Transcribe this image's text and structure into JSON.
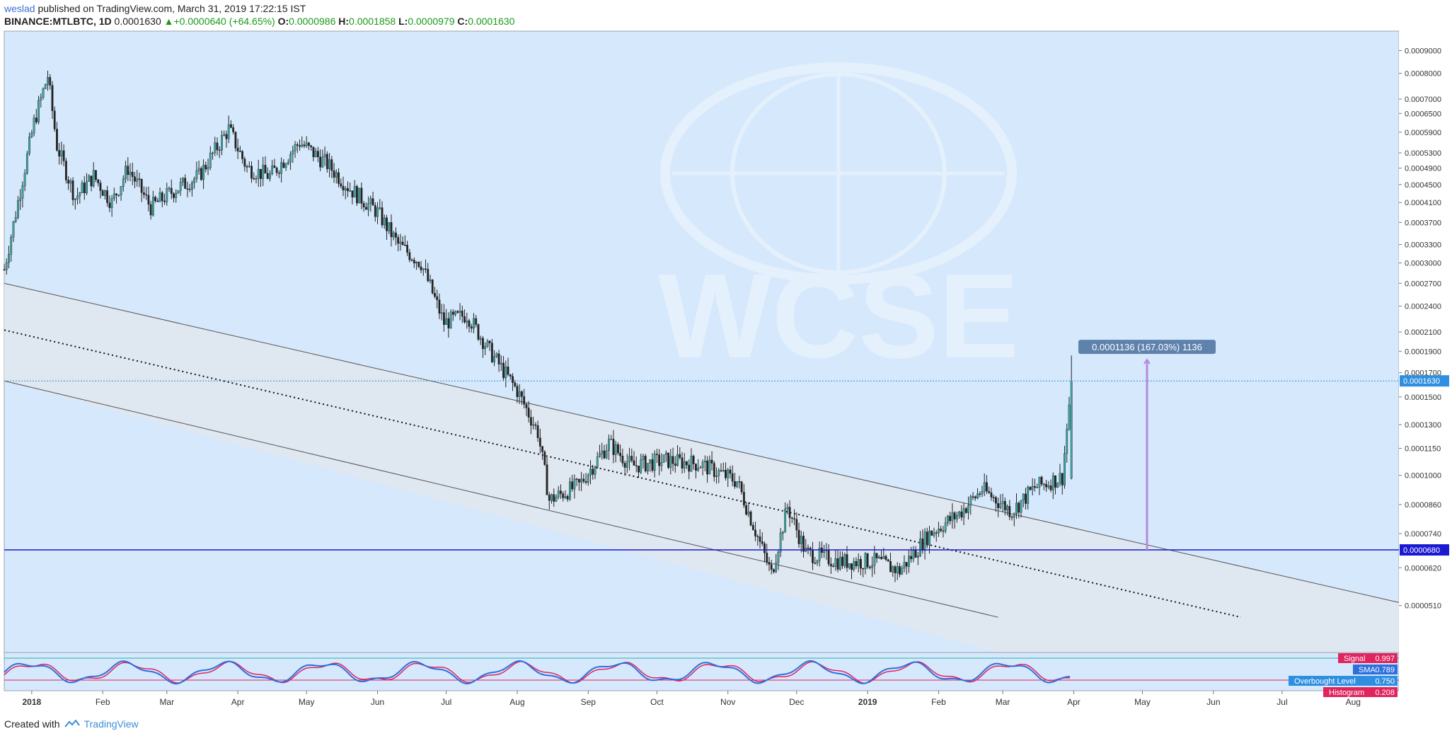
{
  "header": {
    "author": "weslad",
    "published_text": "published on TradingView.com, March 31, 2019 17:22:15 IST",
    "symbol": "BINANCE:MTLBTC, 1D",
    "last": "0.0001630",
    "change": "+0.0000640 (+64.65%)",
    "open_label": "O:",
    "open": "0.0000986",
    "high_label": "H:",
    "high": "0.0001858",
    "low_label": "L:",
    "low": "0.0000979",
    "close_label": "C:",
    "close": "0.0001630"
  },
  "footer": {
    "created_with": "Created with",
    "brand": "TradingView"
  },
  "watermark": {
    "text": "WCSE"
  },
  "colors": {
    "chart_bg": "#d6e8fb",
    "up_candle": "#3ba7a7",
    "down_candle": "#222222",
    "channel_fill": "#e0e6ee",
    "support_line": "#1a1ad2",
    "measure": "#b58ae0",
    "price_tag": "#2f8fe0"
  },
  "chart_data": {
    "type": "candlestick",
    "scale": "log",
    "y_range": [
      4e-05,
      0.000995
    ],
    "x_ticks": [
      "2018",
      "Feb",
      "Mar",
      "Apr",
      "May",
      "Jun",
      "Jul",
      "Aug",
      "Sep",
      "Oct",
      "Nov",
      "Dec",
      "2019",
      "Feb",
      "Mar",
      "Apr",
      "May",
      "Jun",
      "Jul",
      "Aug"
    ],
    "y_ticks": [
      "0.0009000",
      "0.0008000",
      "0.0007000",
      "0.0006500",
      "0.0005900",
      "0.0005300",
      "0.0004900",
      "0.0004500",
      "0.0004100",
      "0.0003700",
      "0.0003300",
      "0.0003000",
      "0.0002700",
      "0.0002400",
      "0.0002100",
      "0.0001900",
      "0.0001700",
      "0.0001500",
      "0.0001300",
      "0.0001150",
      "0.0001000",
      "0.0000860",
      "0.0000740",
      "0.0000620",
      "0.0000510"
    ],
    "y_tick_values": [
      0.0009,
      0.0008,
      0.0007,
      0.00065,
      0.00059,
      0.00053,
      0.00049,
      0.00045,
      0.00041,
      0.00037,
      0.00033,
      0.0003,
      0.00027,
      0.00024,
      0.00021,
      0.00019,
      0.00017,
      0.00015,
      0.00013,
      0.000115,
      0.0001,
      8.6e-05,
      7.4e-05,
      6.2e-05,
      5.1e-05
    ],
    "current_price": {
      "label": "0.0001630",
      "value": 0.000163
    },
    "support": {
      "label": "0.0000680",
      "value": 6.8e-05
    },
    "measure": {
      "label": "0.0001136 (167.03%) 1136",
      "from": 6.8e-05,
      "to": 0.000182
    },
    "close_path": [
      {
        "d": "2017-12-20",
        "v": 0.00029
      },
      {
        "d": "2018-01-02",
        "v": 0.00062
      },
      {
        "d": "2018-01-08",
        "v": 0.00079
      },
      {
        "d": "2018-01-12",
        "v": 0.00055
      },
      {
        "d": "2018-01-20",
        "v": 0.00042
      },
      {
        "d": "2018-01-28",
        "v": 0.00047
      },
      {
        "d": "2018-02-05",
        "v": 0.00041
      },
      {
        "d": "2018-02-12",
        "v": 0.00049
      },
      {
        "d": "2018-02-22",
        "v": 0.0004
      },
      {
        "d": "2018-03-05",
        "v": 0.00044
      },
      {
        "d": "2018-03-15",
        "v": 0.00047
      },
      {
        "d": "2018-03-28",
        "v": 0.0006
      },
      {
        "d": "2018-04-05",
        "v": 0.00049
      },
      {
        "d": "2018-04-15",
        "v": 0.00047
      },
      {
        "d": "2018-04-28",
        "v": 0.00056
      },
      {
        "d": "2018-05-10",
        "v": 0.0005
      },
      {
        "d": "2018-05-20",
        "v": 0.00044
      },
      {
        "d": "2018-06-01",
        "v": 0.00039
      },
      {
        "d": "2018-06-10",
        "v": 0.00033
      },
      {
        "d": "2018-06-20",
        "v": 0.0003
      },
      {
        "d": "2018-06-30",
        "v": 0.00022
      },
      {
        "d": "2018-07-10",
        "v": 0.00023
      },
      {
        "d": "2018-07-20",
        "v": 0.00019
      },
      {
        "d": "2018-08-01",
        "v": 0.000155
      },
      {
        "d": "2018-08-10",
        "v": 0.000125
      },
      {
        "d": "2018-08-15",
        "v": 8.8e-05
      },
      {
        "d": "2018-08-28",
        "v": 9.5e-05
      },
      {
        "d": "2018-09-10",
        "v": 0.000118
      },
      {
        "d": "2018-09-20",
        "v": 0.000105
      },
      {
        "d": "2018-10-05",
        "v": 0.000108
      },
      {
        "d": "2018-10-20",
        "v": 0.000106
      },
      {
        "d": "2018-11-05",
        "v": 9.7e-05
      },
      {
        "d": "2018-11-20",
        "v": 6e-05
      },
      {
        "d": "2018-11-27",
        "v": 8.5e-05
      },
      {
        "d": "2018-12-05",
        "v": 6.7e-05
      },
      {
        "d": "2018-12-20",
        "v": 6.4e-05
      },
      {
        "d": "2019-01-05",
        "v": 6.4e-05
      },
      {
        "d": "2019-01-15",
        "v": 6.1e-05
      },
      {
        "d": "2019-01-28",
        "v": 7.4e-05
      },
      {
        "d": "2019-02-10",
        "v": 8.2e-05
      },
      {
        "d": "2019-02-20",
        "v": 9.3e-05
      },
      {
        "d": "2019-03-05",
        "v": 8.3e-05
      },
      {
        "d": "2019-03-15",
        "v": 9.4e-05
      },
      {
        "d": "2019-03-27",
        "v": 9.9e-05
      },
      {
        "d": "2019-03-31",
        "v": 0.000163
      }
    ],
    "channel": {
      "upper": [
        {
          "d": "2017-12-20",
          "v": 0.00027
        },
        {
          "d": "2019-08-21",
          "v": 5.18e-05
        }
      ],
      "middle": [
        {
          "d": "2017-12-20",
          "v": 0.000212
        },
        {
          "d": "2019-06-13",
          "v": 4.8e-05
        }
      ],
      "lower": [
        {
          "d": "2017-12-20",
          "v": 0.000163
        },
        {
          "d": "2019-02-27",
          "v": 4.8e-05
        }
      ]
    },
    "indicator": {
      "legend": [
        {
          "label": "Signal",
          "value": "0.997",
          "color": "#e0245e"
        },
        {
          "label": "SMA",
          "value": "0.789",
          "color": "#2e6fdc"
        },
        {
          "label": "Overbought Level",
          "value": "0.750",
          "color": "#2e8fe0"
        },
        {
          "label": "Histogram",
          "value": "0.208",
          "color": "#e0245e"
        }
      ]
    }
  }
}
